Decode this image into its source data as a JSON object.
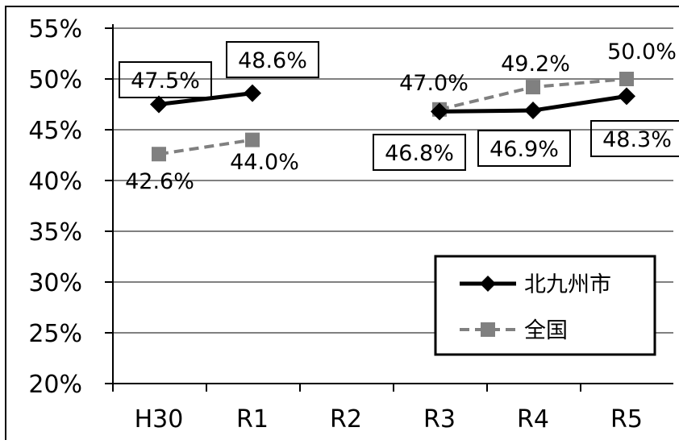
{
  "chart_data": {
    "type": "line",
    "categories": [
      "H30",
      "R1",
      "R2",
      "R3",
      "R4",
      "R5"
    ],
    "ylim": [
      20,
      55
    ],
    "yticks": [
      "20%",
      "25%",
      "30%",
      "35%",
      "40%",
      "45%",
      "50%",
      "55%"
    ],
    "ytick_values": [
      20,
      25,
      30,
      35,
      40,
      45,
      50,
      55
    ],
    "grid": true,
    "legend_position": "bottom-right",
    "series": [
      {
        "name": "北九州市",
        "color": "#000000",
        "style": "solid",
        "marker": "diamond",
        "segments": [
          [
            0,
            1
          ],
          [
            3,
            4,
            5
          ]
        ],
        "values": [
          47.5,
          48.6,
          null,
          46.8,
          46.9,
          48.3
        ],
        "labels": [
          "47.5%",
          "48.6%",
          "",
          "46.8%",
          "46.9%",
          "48.3%"
        ],
        "boxed": true
      },
      {
        "name": "全国",
        "color": "#808080",
        "style": "dashed",
        "marker": "square",
        "segments": [
          [
            0,
            1
          ],
          [
            3,
            4,
            5
          ]
        ],
        "values": [
          42.6,
          44.0,
          null,
          47.0,
          49.2,
          50.0
        ],
        "labels": [
          "42.6%",
          "44.0%",
          "",
          "47.0%",
          "49.2%",
          "50.0%"
        ],
        "boxed": false
      }
    ]
  }
}
